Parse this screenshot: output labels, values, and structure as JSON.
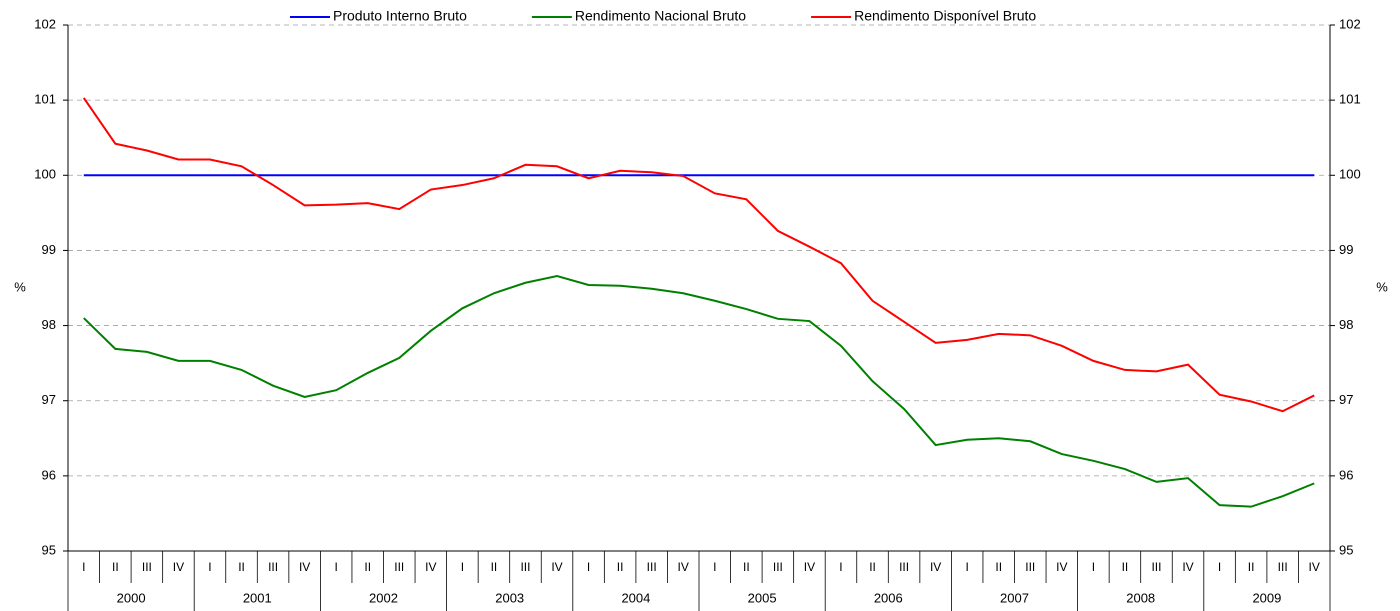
{
  "chart_data": {
    "type": "line",
    "y_label": "%",
    "y2_label": "%",
    "categories": [
      "I",
      "II",
      "III",
      "IV",
      "I",
      "II",
      "III",
      "IV",
      "I",
      "II",
      "III",
      "IV",
      "I",
      "II",
      "III",
      "IV",
      "I",
      "II",
      "III",
      "IV",
      "I",
      "II",
      "III",
      "IV",
      "I",
      "II",
      "III",
      "IV",
      "I",
      "II",
      "III",
      "IV",
      "I",
      "II",
      "III",
      "IV",
      "I",
      "II",
      "III",
      "IV"
    ],
    "category_groups": [
      "2000",
      "2001",
      "2002",
      "2003",
      "2004",
      "2005",
      "2006",
      "2007",
      "2008",
      "2009"
    ],
    "ylim": [
      95,
      102
    ],
    "yticks": [
      95,
      96,
      97,
      98,
      99,
      100,
      101,
      102
    ],
    "y2lim": [
      95,
      102
    ],
    "y2ticks": [
      95,
      96,
      97,
      98,
      99,
      100,
      101,
      102
    ],
    "grid": true,
    "legend": "top",
    "series": [
      {
        "name": "Produto Interno Bruto",
        "color": "#0000ff",
        "values": [
          100,
          100,
          100,
          100,
          100,
          100,
          100,
          100,
          100,
          100,
          100,
          100,
          100,
          100,
          100,
          100,
          100,
          100,
          100,
          100,
          100,
          100,
          100,
          100,
          100,
          100,
          100,
          100,
          100,
          100,
          100,
          100,
          100,
          100,
          100,
          100,
          100,
          100,
          100,
          100
        ]
      },
      {
        "name": "Rendimento Nacional Bruto",
        "color": "#008000",
        "values": [
          98.1,
          97.69,
          97.65,
          97.53,
          97.53,
          97.41,
          97.2,
          97.05,
          97.14,
          97.37,
          97.57,
          97.93,
          98.23,
          98.43,
          98.57,
          98.66,
          98.54,
          98.53,
          98.49,
          98.43,
          98.33,
          98.22,
          98.09,
          98.06,
          97.73,
          97.26,
          96.89,
          96.41,
          96.48,
          96.5,
          96.46,
          96.29,
          96.2,
          96.09,
          95.92,
          95.97,
          95.61,
          95.59,
          95.73,
          95.9
        ]
      },
      {
        "name": "Rendimento Disponível Bruto",
        "color": "#ff0000",
        "values": [
          101.03,
          100.42,
          100.33,
          100.21,
          100.21,
          100.12,
          99.87,
          99.6,
          99.61,
          99.63,
          99.55,
          99.81,
          99.87,
          99.96,
          100.14,
          100.12,
          99.96,
          100.06,
          100.04,
          99.99,
          99.76,
          99.68,
          99.26,
          99.05,
          98.83,
          98.33,
          98.05,
          97.77,
          97.81,
          97.89,
          97.87,
          97.73,
          97.53,
          97.41,
          97.39,
          97.48,
          97.08,
          96.99,
          96.86,
          97.07
        ]
      }
    ]
  }
}
